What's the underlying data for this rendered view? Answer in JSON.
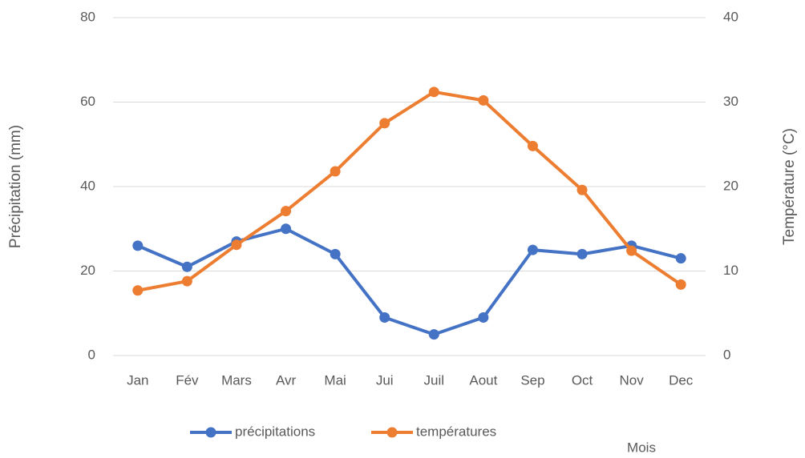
{
  "chart_data": {
    "type": "line",
    "categories": [
      "Jan",
      "Fév",
      "Mars",
      "Avr",
      "Mai",
      "Jui",
      "Juil",
      "Aout",
      "Sep",
      "Oct",
      "Nov",
      "Dec"
    ],
    "series": [
      {
        "name": "précipitations",
        "color": "#4472c4",
        "values": [
          26,
          21,
          27,
          30,
          24,
          9,
          5,
          9,
          25,
          24,
          26,
          23
        ]
      },
      {
        "name": "températures",
        "color": "#ed7d31",
        "axis": "y2",
        "values": [
          7.7,
          8.8,
          13.1,
          17.1,
          21.8,
          27.5,
          31.2,
          30.2,
          24.8,
          19.6,
          12.4,
          8.4
        ]
      }
    ],
    "ylim": [
      0,
      80
    ],
    "yticks": [
      0,
      20,
      40,
      60,
      80
    ],
    "y2lim": [
      0,
      40
    ],
    "y2ticks": [
      0,
      10,
      20,
      30,
      40
    ],
    "ylabel": "Précipitation (mm)",
    "y2label": "Température (°C)",
    "xlabel": "Mois",
    "grid": true,
    "legend": "bottom"
  }
}
